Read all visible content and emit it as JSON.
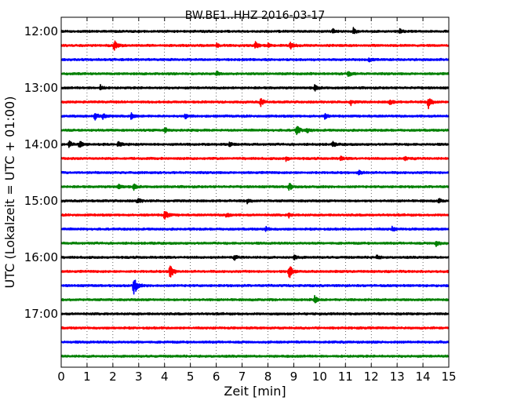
{
  "chart_data": {
    "type": "line",
    "title": "BW.BE1..HHZ 2016-03-17",
    "xlabel": "Zeit  [min]",
    "ylabel": "UTC (Lokalzeit = UTC + 01:00)",
    "xlim": [
      0,
      15
    ],
    "x_ticks": [
      "0",
      "1",
      "2",
      "3",
      "4",
      "5",
      "6",
      "7",
      "8",
      "9",
      "10",
      "11",
      "12",
      "13",
      "14",
      "15"
    ],
    "y_ticks": [
      "12:00",
      "13:00",
      "14:00",
      "15:00",
      "16:00",
      "17:00"
    ],
    "trace_interval_minutes": 15,
    "trace_colors": [
      "#000000",
      "#ff0000",
      "#0000ff",
      "#008000"
    ],
    "grid": "vertical dotted",
    "series": [
      {
        "start": "12:00",
        "events": [
          {
            "t": 10.5,
            "a": 3
          },
          {
            "t": 11.3,
            "a": 4
          },
          {
            "t": 13.1,
            "a": 3
          }
        ]
      },
      {
        "start": "12:15",
        "events": [
          {
            "t": 2.05,
            "a": 8
          },
          {
            "t": 6.0,
            "a": 3
          },
          {
            "t": 7.5,
            "a": 5
          },
          {
            "t": 8.0,
            "a": 3
          },
          {
            "t": 8.85,
            "a": 5
          }
        ]
      },
      {
        "start": "12:30",
        "events": [
          {
            "t": 11.9,
            "a": 3
          }
        ]
      },
      {
        "start": "12:45",
        "events": [
          {
            "t": 6.0,
            "a": 3
          },
          {
            "t": 11.1,
            "a": 5
          }
        ]
      },
      {
        "start": "13:00",
        "events": [
          {
            "t": 1.5,
            "a": 4
          },
          {
            "t": 9.8,
            "a": 4
          }
        ]
      },
      {
        "start": "13:15",
        "events": [
          {
            "t": 7.7,
            "a": 6
          },
          {
            "t": 11.2,
            "a": 4
          },
          {
            "t": 12.7,
            "a": 5
          },
          {
            "t": 14.2,
            "a": 10
          }
        ]
      },
      {
        "start": "13:30",
        "events": [
          {
            "t": 1.3,
            "a": 5
          },
          {
            "t": 1.6,
            "a": 4
          },
          {
            "t": 2.7,
            "a": 5
          },
          {
            "t": 4.8,
            "a": 3
          },
          {
            "t": 10.2,
            "a": 3
          }
        ]
      },
      {
        "start": "13:45",
        "events": [
          {
            "t": 4.0,
            "a": 4
          },
          {
            "t": 9.1,
            "a": 8
          },
          {
            "t": 9.5,
            "a": 3
          }
        ]
      },
      {
        "start": "14:00",
        "events": [
          {
            "t": 0.3,
            "a": 5
          },
          {
            "t": 0.7,
            "a": 5
          },
          {
            "t": 2.2,
            "a": 4
          },
          {
            "t": 6.5,
            "a": 3
          },
          {
            "t": 10.5,
            "a": 3
          }
        ]
      },
      {
        "start": "14:15",
        "events": [
          {
            "t": 8.7,
            "a": 3
          },
          {
            "t": 10.8,
            "a": 3
          },
          {
            "t": 13.3,
            "a": 3
          }
        ]
      },
      {
        "start": "14:30",
        "events": [
          {
            "t": 11.5,
            "a": 5
          }
        ]
      },
      {
        "start": "14:45",
        "events": [
          {
            "t": 2.2,
            "a": 4
          },
          {
            "t": 2.8,
            "a": 4
          },
          {
            "t": 8.8,
            "a": 6
          }
        ]
      },
      {
        "start": "15:00",
        "events": [
          {
            "t": 2.95,
            "a": 4
          },
          {
            "t": 7.2,
            "a": 3
          },
          {
            "t": 14.6,
            "a": 3
          }
        ]
      },
      {
        "start": "15:15",
        "events": [
          {
            "t": 4.0,
            "a": 9
          },
          {
            "t": 6.4,
            "a": 4
          },
          {
            "t": 8.8,
            "a": 3
          }
        ]
      },
      {
        "start": "15:30",
        "events": [
          {
            "t": 7.9,
            "a": 3
          },
          {
            "t": 12.8,
            "a": 3
          }
        ]
      },
      {
        "start": "15:45",
        "events": [
          {
            "t": 14.5,
            "a": 6
          }
        ]
      },
      {
        "start": "16:00",
        "events": [
          {
            "t": 6.7,
            "a": 3
          },
          {
            "t": 9.0,
            "a": 3
          },
          {
            "t": 12.2,
            "a": 3
          }
        ]
      },
      {
        "start": "16:15",
        "events": [
          {
            "t": 4.2,
            "a": 14
          },
          {
            "t": 8.8,
            "a": 13
          }
        ]
      },
      {
        "start": "16:30",
        "events": [
          {
            "t": 2.8,
            "a": 16
          }
        ]
      },
      {
        "start": "16:45",
        "events": [
          {
            "t": 9.8,
            "a": 5
          }
        ]
      },
      {
        "start": "17:00",
        "events": []
      },
      {
        "start": "17:15",
        "events": []
      },
      {
        "start": "17:30",
        "events": []
      },
      {
        "start": "17:45",
        "events": []
      }
    ]
  }
}
